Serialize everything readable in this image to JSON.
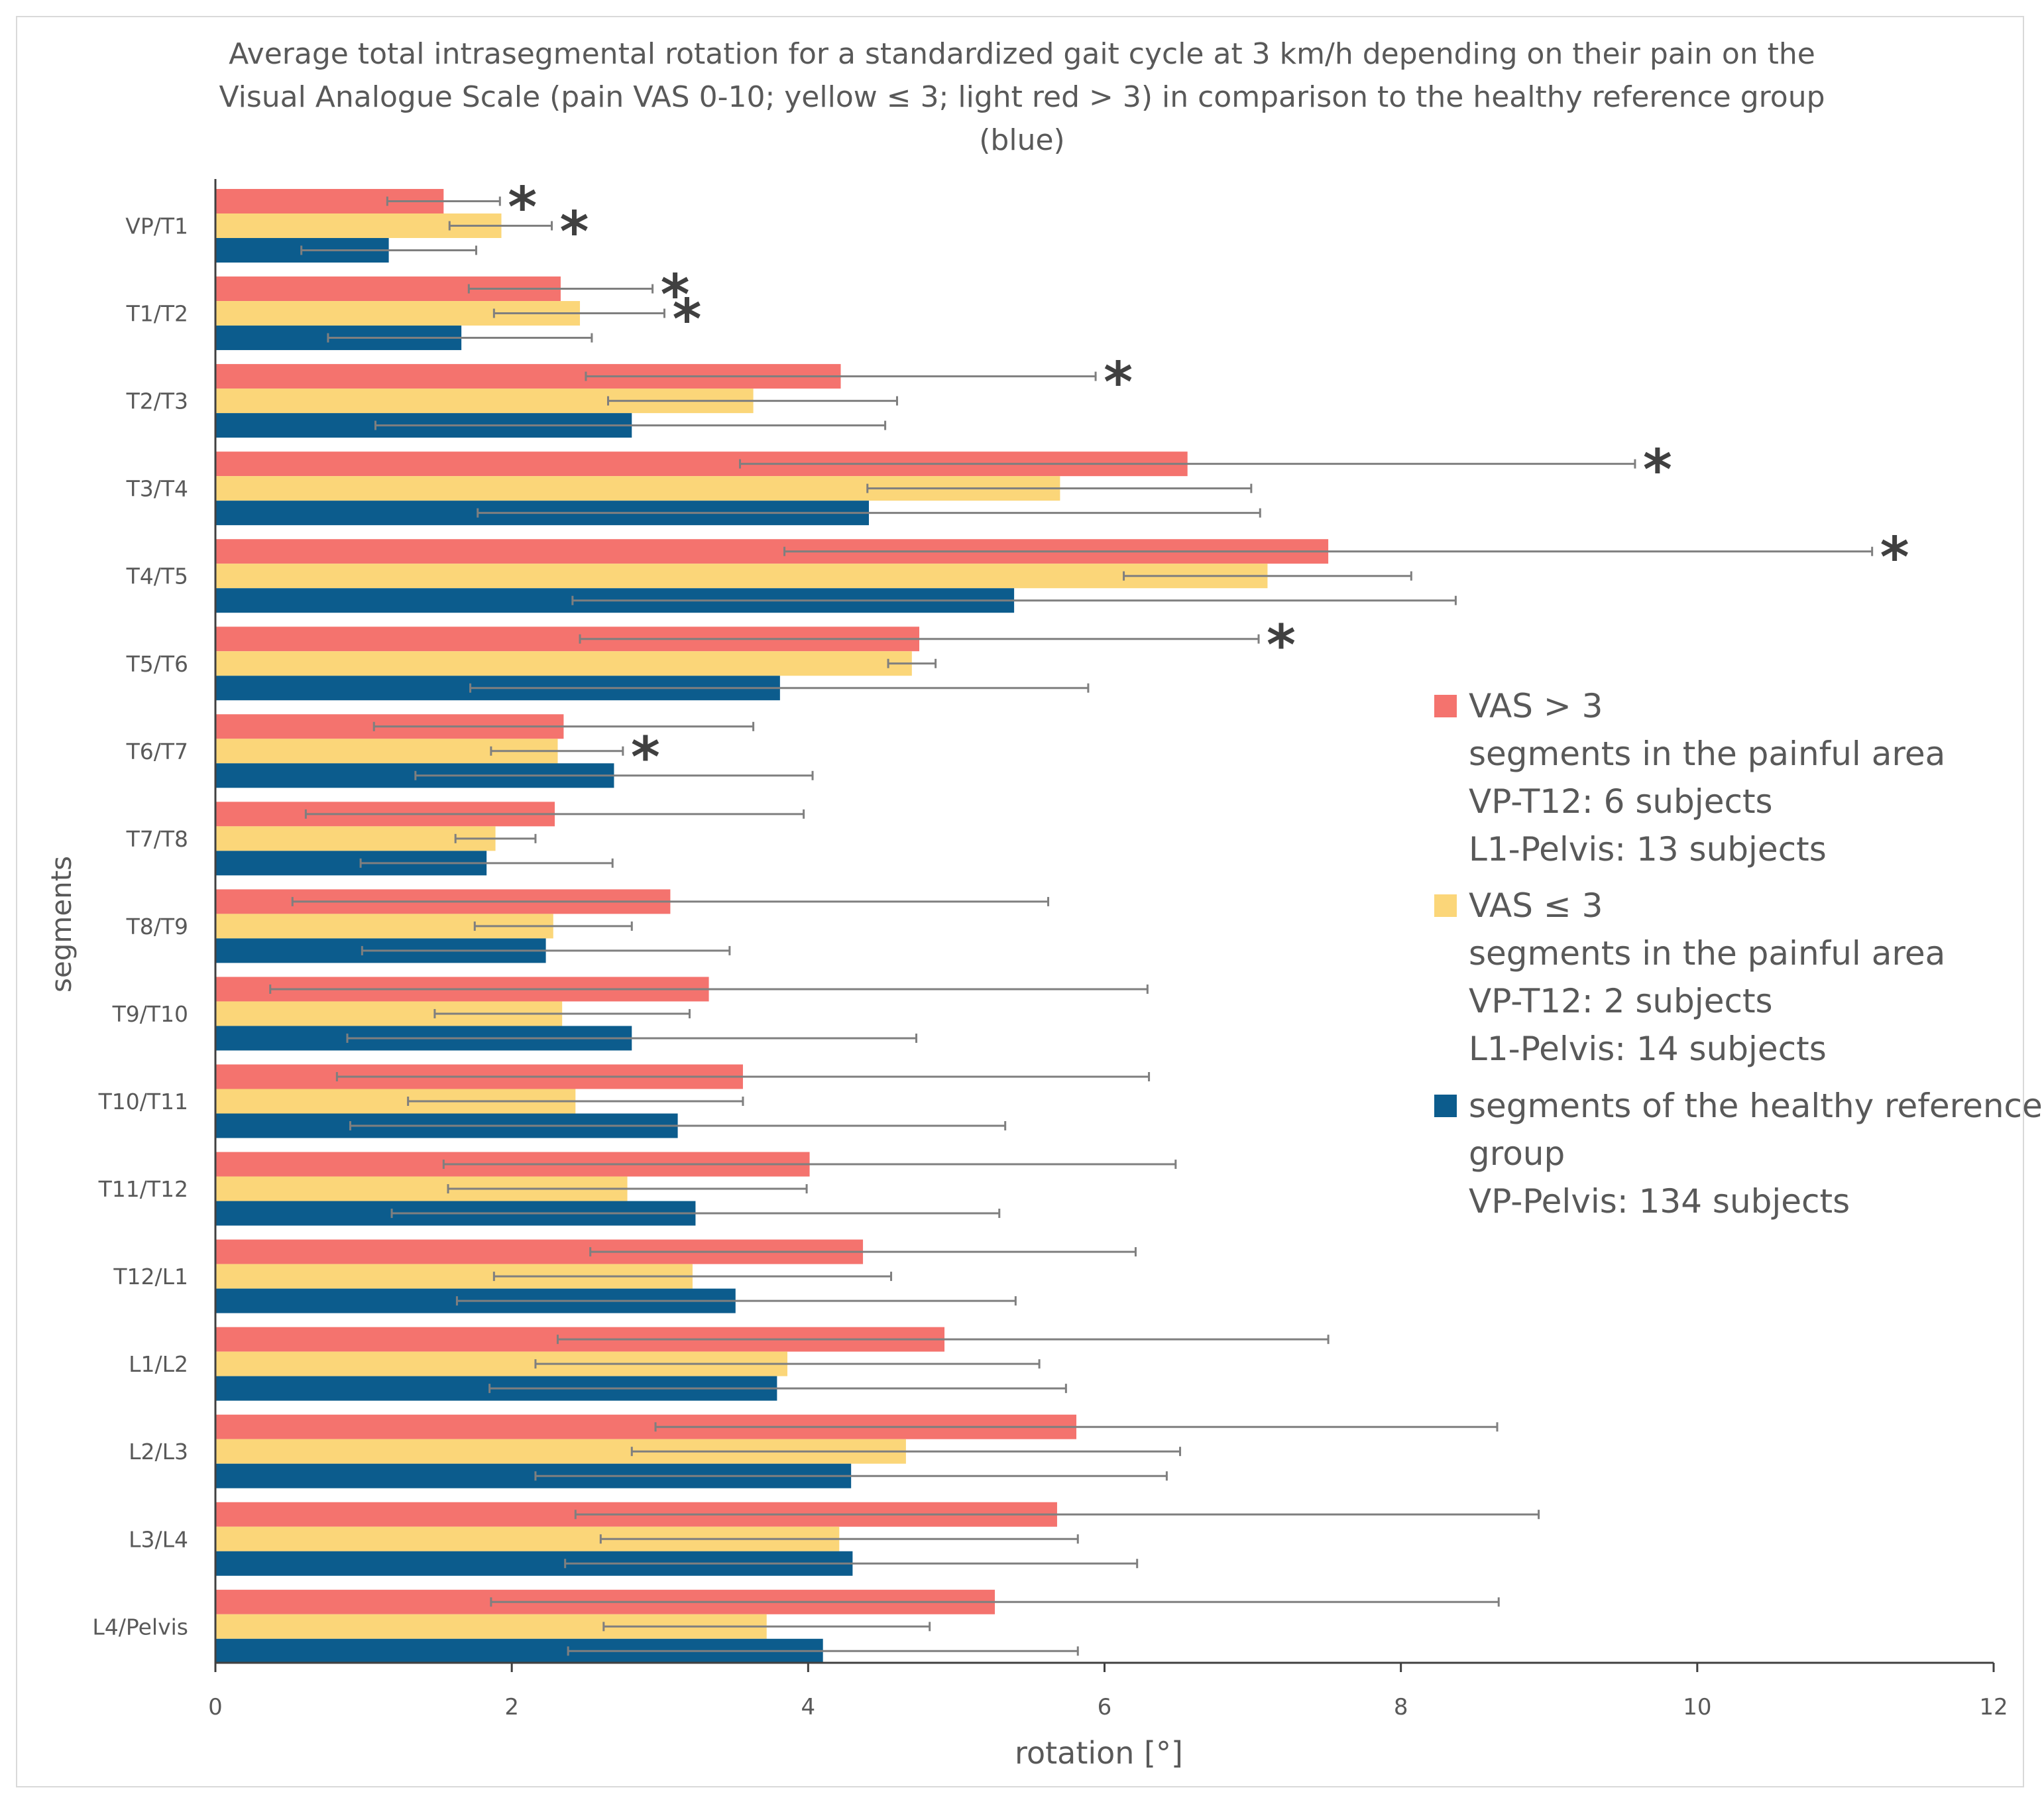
{
  "chart_data": {
    "type": "bar",
    "orientation": "horizontal",
    "title": [
      "Average total intrasegmental rotation for a standardized gait cycle at 3 km/h depending on their pain on the",
      "Visual Analogue Scale (pain VAS 0-10; yellow ≤ 3; light red > 3) in comparison to the healthy reference group",
      "(blue)"
    ],
    "xlabel": "rotation [°]",
    "ylabel": "segments",
    "xlim": [
      0,
      12
    ],
    "xticks": [
      "0",
      "2",
      "4",
      "6",
      "8",
      "10",
      "12"
    ],
    "categories": [
      "VP/T1",
      "T1/T2",
      "T2/T3",
      "T3/T4",
      "T4/T5",
      "T5/T6",
      "T6/T7",
      "T7/T8",
      "T8/T9",
      "T9/T10",
      "T10/T11",
      "T11/T12",
      "T12/L1",
      "L1/L2",
      "L2/L3",
      "L3/L4",
      "L4/Pelvis"
    ],
    "series": [
      {
        "name": "VAS > 3",
        "color": "#f4736e",
        "values": [
          1.54,
          2.33,
          4.22,
          6.56,
          7.51,
          4.75,
          2.35,
          2.29,
          3.07,
          3.33,
          3.56,
          4.01,
          4.37,
          4.92,
          5.81,
          5.68,
          5.26
        ],
        "err_low": [
          1.16,
          1.71,
          2.5,
          3.54,
          3.84,
          2.46,
          1.07,
          0.61,
          0.52,
          0.37,
          0.82,
          1.54,
          2.53,
          2.31,
          2.97,
          2.43,
          1.86
        ],
        "err_high": [
          1.92,
          2.95,
          5.94,
          9.58,
          11.18,
          7.04,
          3.63,
          3.97,
          5.62,
          6.29,
          6.3,
          6.48,
          6.21,
          7.51,
          8.65,
          8.93,
          8.66
        ]
      },
      {
        "name": "VAS ≤ 3",
        "color": "#fbd679",
        "values": [
          1.93,
          2.46,
          3.63,
          5.7,
          7.1,
          4.7,
          2.31,
          1.89,
          2.28,
          2.34,
          2.43,
          2.78,
          3.22,
          3.86,
          4.66,
          4.21,
          3.72
        ],
        "err_low": [
          1.58,
          1.88,
          2.65,
          4.4,
          6.13,
          4.54,
          1.86,
          1.62,
          1.75,
          1.48,
          1.3,
          1.57,
          1.88,
          2.16,
          2.81,
          2.6,
          2.62
        ],
        "err_high": [
          2.27,
          3.03,
          4.6,
          6.99,
          8.07,
          4.86,
          2.75,
          2.16,
          2.81,
          3.2,
          3.56,
          3.99,
          4.56,
          5.56,
          6.51,
          5.82,
          4.82
        ]
      },
      {
        "name": "segments of the healthy reference group",
        "color": "#0c5c8d",
        "values": [
          1.17,
          1.66,
          2.81,
          4.41,
          5.39,
          3.81,
          2.69,
          1.83,
          2.23,
          2.81,
          3.12,
          3.24,
          3.51,
          3.79,
          4.29,
          4.3,
          4.1
        ],
        "err_low": [
          0.58,
          0.76,
          1.08,
          1.77,
          2.41,
          1.72,
          1.35,
          0.98,
          0.99,
          0.89,
          0.91,
          1.19,
          1.63,
          1.85,
          2.16,
          2.36,
          2.38
        ],
        "err_high": [
          1.76,
          2.54,
          4.52,
          7.05,
          8.37,
          5.89,
          4.03,
          2.68,
          3.47,
          4.73,
          5.33,
          5.29,
          5.4,
          5.74,
          6.42,
          6.22,
          5.82
        ]
      }
    ],
    "significance_markers": [
      {
        "category": "VP/T1",
        "series": "VAS > 3",
        "text": "*"
      },
      {
        "category": "VP/T1",
        "series": "VAS ≤ 3",
        "text": "*"
      },
      {
        "category": "T1/T2",
        "series": "VAS > 3",
        "text": "*"
      },
      {
        "category": "T1/T2",
        "series": "VAS ≤ 3",
        "text": "*"
      },
      {
        "category": "T2/T3",
        "series": "VAS > 3",
        "text": "*"
      },
      {
        "category": "T3/T4",
        "series": "VAS > 3",
        "text": "*"
      },
      {
        "category": "T4/T5",
        "series": "VAS > 3",
        "text": "*"
      },
      {
        "category": "T5/T6",
        "series": "VAS > 3",
        "text": "*"
      },
      {
        "category": "T6/T7",
        "series": "VAS ≤ 3",
        "text": "*"
      }
    ],
    "grid": false,
    "legend_position": "right"
  },
  "legend": [
    {
      "color": "#f4736e",
      "lines": [
        "VAS > 3",
        "segments in the painful area",
        "VP-T12: 6 subjects",
        "L1-Pelvis: 13 subjects"
      ]
    },
    {
      "color": "#fbd679",
      "lines": [
        "VAS ≤ 3",
        "segments in the painful area",
        "VP-T12: 2 subjects",
        "L1-Pelvis: 14 subjects"
      ]
    },
    {
      "color": "#0c5c8d",
      "lines": [
        "segments of the healthy reference",
        "group",
        "VP-Pelvis: 134 subjects"
      ]
    }
  ]
}
